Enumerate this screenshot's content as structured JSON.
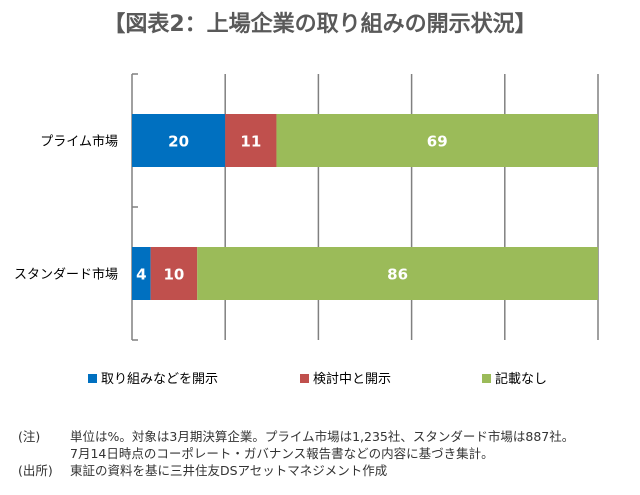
{
  "title": "【図表2：上場企業の取り組みの開示状況】",
  "chart_data": {
    "type": "bar",
    "orientation": "horizontal",
    "stacked": true,
    "categories": [
      "プライム市場",
      "スタンダード市場"
    ],
    "series": [
      {
        "name": "取り組みなどを開示",
        "color": "#0070C0",
        "values": [
          20,
          4
        ]
      },
      {
        "name": "検討中と開示",
        "color": "#C0504D",
        "values": [
          11,
          10
        ]
      },
      {
        "name": "記載なし",
        "color": "#9BBB59",
        "values": [
          69,
          86
        ]
      }
    ],
    "xlim": [
      0,
      100
    ],
    "grid": true,
    "data_labels": true,
    "legend": "bottom"
  },
  "notes": {
    "note_label": "(注)",
    "note_line1": "単位は%。対象は3月期決算企業。プライム市場は1,235社、スタンダード市場は887社。",
    "note_line2": "7月14日時点のコーポレート・ガバナンス報告書などの内容に基づき集計。",
    "source_label": "(出所)",
    "source_text": "東証の資料を基に三井住友DSアセットマネジメント作成"
  }
}
